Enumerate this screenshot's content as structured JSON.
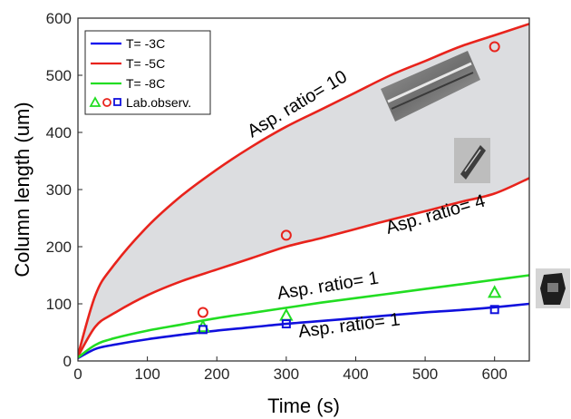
{
  "chart_data": {
    "type": "line",
    "xlabel": "Time (s)",
    "ylabel": "Column length (um)",
    "xlim": [
      0,
      650
    ],
    "ylim": [
      0,
      600
    ],
    "xticks": [
      0,
      100,
      200,
      300,
      400,
      500,
      600
    ],
    "yticks": [
      0,
      100,
      200,
      300,
      400,
      500,
      600
    ],
    "grid": false,
    "legend_position": "top-left",
    "legend": [
      {
        "label": "T= -3C",
        "color": "#0000ee",
        "kind": "line"
      },
      {
        "label": "T= -5C",
        "color": "#e8231c",
        "kind": "line"
      },
      {
        "label": "T= -8C",
        "color": "#22dd22",
        "kind": "line"
      },
      {
        "label": "Lab.observ.",
        "kind": "markers"
      }
    ],
    "series": [
      {
        "legend_index": 0,
        "color": "#1010dd",
        "annotation": "Asp. ratio= 1",
        "x": [
          0,
          25,
          50,
          100,
          150,
          200,
          250,
          300,
          350,
          400,
          450,
          500,
          550,
          600,
          650
        ],
        "y": [
          5,
          21,
          28,
          38,
          46,
          53,
          59,
          65,
          70,
          75,
          80,
          85,
          89,
          94,
          100
        ]
      },
      {
        "legend_index": 1,
        "color": "#e8231c",
        "annotation": "Asp. ratio= 4",
        "x": [
          0,
          25,
          50,
          100,
          150,
          200,
          250,
          300,
          350,
          400,
          450,
          500,
          550,
          600,
          650
        ],
        "y": [
          8,
          60,
          82,
          115,
          140,
          160,
          180,
          200,
          215,
          231,
          247,
          262,
          278,
          293,
          320
        ]
      },
      {
        "legend_index": 1,
        "color": "#e8231c",
        "annotation": "Asp. ratio= 10",
        "x": [
          0,
          25,
          50,
          100,
          150,
          200,
          250,
          300,
          350,
          400,
          450,
          500,
          550,
          600,
          650
        ],
        "y": [
          10,
          115,
          165,
          235,
          290,
          335,
          375,
          410,
          440,
          470,
          500,
          525,
          550,
          570,
          590
        ]
      },
      {
        "legend_index": 2,
        "color": "#22dd22",
        "annotation": "Asp. ratio= 1",
        "x": [
          0,
          25,
          50,
          100,
          150,
          200,
          250,
          300,
          350,
          400,
          450,
          500,
          550,
          600,
          650
        ],
        "y": [
          6,
          28,
          39,
          53,
          64,
          75,
          84,
          93,
          102,
          110,
          118,
          126,
          134,
          142,
          150
        ]
      }
    ],
    "observations": [
      {
        "marker": "triangle",
        "color": "#22dd22",
        "x": [
          180,
          300,
          600
        ],
        "y": [
          60,
          80,
          120
        ]
      },
      {
        "marker": "circle",
        "color": "#e8231c",
        "x": [
          180,
          300,
          600
        ],
        "y": [
          85,
          220,
          550
        ]
      },
      {
        "marker": "square",
        "color": "#1010dd",
        "x": [
          180,
          300,
          600
        ],
        "y": [
          55,
          65,
          90
        ]
      }
    ]
  }
}
